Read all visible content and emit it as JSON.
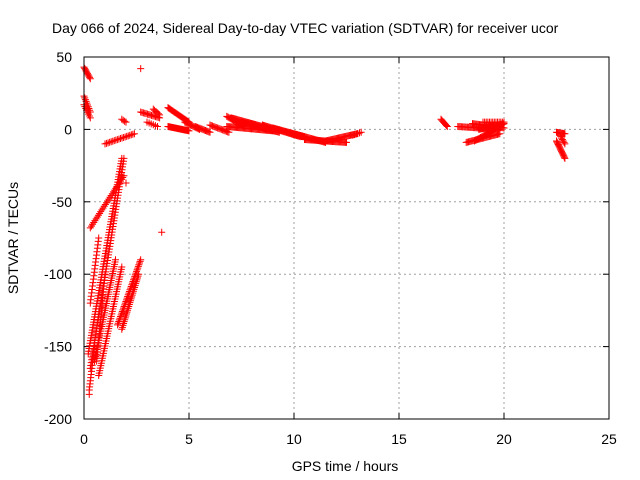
{
  "chart_data": {
    "type": "scatter",
    "title": "Day 066 of 2024, Sidereal Day-to-day VTEC variation (SDTVAR) for receiver ucor",
    "xlabel": "GPS time / hours",
    "ylabel": "SDTVAR / TECUs",
    "xlim": [
      0,
      25
    ],
    "ylim": [
      -200,
      50
    ],
    "x_ticks": [
      0,
      5,
      10,
      15,
      20,
      25
    ],
    "x_tick_labels": [
      "0",
      "5",
      "10",
      "15",
      "20",
      "25"
    ],
    "y_ticks": [
      -200,
      -150,
      -100,
      -50,
      0,
      50
    ],
    "y_tick_labels": [
      "-200",
      "-150",
      "-100",
      "-50",
      "0",
      "50"
    ],
    "grid": true,
    "marker": "+",
    "series": [
      {
        "name": "SDTVAR",
        "color": "#ff0000",
        "segments": [
          {
            "from": [
              0.0,
              43
            ],
            "to": [
              0.3,
              35
            ],
            "n": 10
          },
          {
            "from": [
              0.0,
              23
            ],
            "to": [
              0.3,
              12
            ],
            "n": 10
          },
          {
            "from": [
              0.0,
              17
            ],
            "to": [
              0.3,
              8
            ],
            "n": 8
          },
          {
            "from": [
              0.2,
              -155
            ],
            "to": [
              1.8,
              -20
            ],
            "n": 75
          },
          {
            "from": [
              0.3,
              -165
            ],
            "to": [
              1.9,
              -20
            ],
            "n": 75
          },
          {
            "from": [
              0.25,
              -180
            ],
            "to": [
              0.5,
              -150
            ],
            "n": 15
          },
          {
            "from": [
              0.3,
              -120
            ],
            "to": [
              0.7,
              -75
            ],
            "n": 20
          },
          {
            "from": [
              0.3,
              -68
            ],
            "to": [
              1.9,
              -32
            ],
            "n": 30
          },
          {
            "from": [
              0.5,
              -160
            ],
            "to": [
              1.5,
              -90
            ],
            "n": 45
          },
          {
            "from": [
              0.7,
              -170
            ],
            "to": [
              1.8,
              -95
            ],
            "n": 45
          },
          {
            "from": [
              0.6,
              -160
            ],
            "to": [
              1.0,
              -100
            ],
            "n": 30
          },
          {
            "from": [
              1.6,
              -135
            ],
            "to": [
              2.7,
              -90
            ],
            "n": 40
          },
          {
            "from": [
              1.8,
              -138
            ],
            "to": [
              2.6,
              -100
            ],
            "n": 30
          },
          {
            "from": [
              1.0,
              -10
            ],
            "to": [
              2.4,
              -3
            ],
            "n": 20
          },
          {
            "from": [
              1.8,
              7
            ],
            "to": [
              2.0,
              5
            ],
            "n": 4
          },
          {
            "from": [
              2.7,
              12
            ],
            "to": [
              3.6,
              8
            ],
            "n": 15
          },
          {
            "from": [
              3.3,
              14
            ],
            "to": [
              3.6,
              10
            ],
            "n": 6
          },
          {
            "from": [
              3.0,
              5
            ],
            "to": [
              3.5,
              2
            ],
            "n": 6
          },
          {
            "from": [
              4.0,
              15
            ],
            "to": [
              5.0,
              5
            ],
            "n": 22
          },
          {
            "from": [
              4.0,
              2
            ],
            "to": [
              5.0,
              -1
            ],
            "n": 22
          },
          {
            "from": [
              4.8,
              5
            ],
            "to": [
              5.5,
              0
            ],
            "n": 14
          },
          {
            "from": [
              5.3,
              2
            ],
            "to": [
              6.0,
              -2
            ],
            "n": 14
          },
          {
            "from": [
              6.0,
              3
            ],
            "to": [
              6.9,
              -2
            ],
            "n": 16
          },
          {
            "from": [
              6.8,
              9
            ],
            "to": [
              7.6,
              2
            ],
            "n": 16
          },
          {
            "from": [
              6.8,
              2
            ],
            "to": [
              9.0,
              -1
            ],
            "n": 44
          },
          {
            "from": [
              7.0,
              8
            ],
            "to": [
              9.0,
              0
            ],
            "n": 44
          },
          {
            "from": [
              7.5,
              5
            ],
            "to": [
              9.3,
              -2
            ],
            "n": 40
          },
          {
            "from": [
              8.5,
              3
            ],
            "to": [
              10.3,
              -5
            ],
            "n": 40
          },
          {
            "from": [
              9.0,
              1
            ],
            "to": [
              10.5,
              -5
            ],
            "n": 30
          },
          {
            "from": [
              10.0,
              -3
            ],
            "to": [
              11.5,
              -9
            ],
            "n": 30
          },
          {
            "from": [
              10.5,
              -7
            ],
            "to": [
              12.5,
              -9
            ],
            "n": 40
          },
          {
            "from": [
              11.5,
              -8
            ],
            "to": [
              13.0,
              -3
            ],
            "n": 30
          },
          {
            "from": [
              12.8,
              -4
            ],
            "to": [
              13.2,
              -2
            ],
            "n": 6
          },
          {
            "from": [
              17.0,
              7
            ],
            "to": [
              17.3,
              2
            ],
            "n": 8
          },
          {
            "from": [
              17.8,
              2
            ],
            "to": [
              19.8,
              0
            ],
            "n": 36
          },
          {
            "from": [
              18.5,
              4
            ],
            "to": [
              20.0,
              1
            ],
            "n": 28
          },
          {
            "from": [
              18.8,
              0
            ],
            "to": [
              20.0,
              4
            ],
            "n": 28
          },
          {
            "from": [
              18.2,
              -9
            ],
            "to": [
              19.8,
              -3
            ],
            "n": 30
          },
          {
            "from": [
              18.6,
              -8
            ],
            "to": [
              20.0,
              4
            ],
            "n": 26
          },
          {
            "from": [
              19.0,
              5
            ],
            "to": [
              20.0,
              5
            ],
            "n": 14
          },
          {
            "from": [
              22.5,
              -2
            ],
            "to": [
              22.9,
              -3
            ],
            "n": 10
          },
          {
            "from": [
              22.5,
              -8
            ],
            "to": [
              22.9,
              -20
            ],
            "n": 16
          },
          {
            "from": [
              22.7,
              -5
            ],
            "to": [
              22.9,
              -10
            ],
            "n": 6
          }
        ],
        "points": [
          [
            2.7,
            42
          ],
          [
            3.7,
            -71
          ],
          [
            2.0,
            -37
          ],
          [
            1.8,
            -32
          ],
          [
            0.25,
            -183
          ]
        ]
      }
    ]
  }
}
